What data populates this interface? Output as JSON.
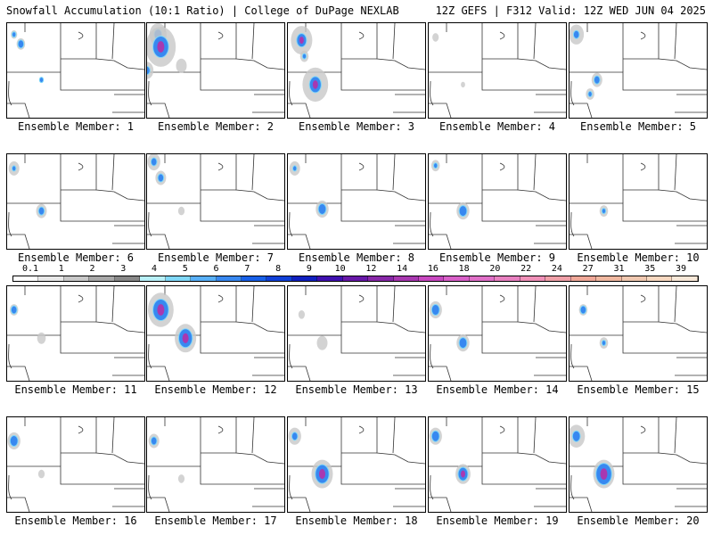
{
  "header": {
    "left": "Snowfall Accumulation (10:1 Ratio) | College of DuPage NEXLAB",
    "right": "12Z GEFS | F312 Valid: 12Z WED JUN 04 2025"
  },
  "panels": [
    {
      "label": "Ensemble Member: 1",
      "snow": [
        [
          0.05,
          0.12,
          3,
          2
        ],
        [
          0.1,
          0.22,
          4,
          3
        ],
        [
          0.25,
          0.6,
          2,
          2
        ]
      ]
    },
    {
      "label": "Ensemble Member: 2",
      "snow": [
        [
          0.08,
          0.12,
          8,
          4
        ],
        [
          0.1,
          0.25,
          14,
          8
        ],
        [
          0.0,
          0.5,
          6,
          3
        ],
        [
          0.25,
          0.45,
          5,
          1
        ]
      ]
    },
    {
      "label": "Ensemble Member: 3",
      "snow": [
        [
          0.1,
          0.18,
          10,
          5
        ],
        [
          0.2,
          0.65,
          12,
          6
        ],
        [
          0.12,
          0.35,
          4,
          2
        ]
      ]
    },
    {
      "label": "Ensemble Member: 4",
      "snow": [
        [
          0.25,
          0.65,
          2,
          1
        ],
        [
          0.05,
          0.15,
          3,
          1
        ]
      ]
    },
    {
      "label": "Ensemble Member: 5",
      "snow": [
        [
          0.05,
          0.12,
          7,
          3
        ],
        [
          0.2,
          0.6,
          5,
          3
        ],
        [
          0.15,
          0.75,
          4,
          2
        ]
      ]
    },
    {
      "label": "Ensemble Member: 6",
      "snow": [
        [
          0.05,
          0.15,
          5,
          2
        ],
        [
          0.25,
          0.6,
          5,
          3
        ]
      ]
    },
    {
      "label": "Ensemble Member: 7",
      "snow": [
        [
          0.05,
          0.08,
          6,
          3
        ],
        [
          0.1,
          0.25,
          5,
          3
        ],
        [
          0.25,
          0.6,
          3,
          1
        ]
      ]
    },
    {
      "label": "Ensemble Member: 8",
      "snow": [
        [
          0.05,
          0.15,
          5,
          2
        ],
        [
          0.25,
          0.58,
          6,
          4
        ]
      ]
    },
    {
      "label": "Ensemble Member: 9",
      "snow": [
        [
          0.05,
          0.12,
          4,
          2
        ],
        [
          0.25,
          0.6,
          6,
          4
        ]
      ]
    },
    {
      "label": "Ensemble Member: 10",
      "snow": [
        [
          0.25,
          0.6,
          4,
          2
        ]
      ]
    },
    {
      "label": "Ensemble Member: 11",
      "snow": [
        [
          0.05,
          0.25,
          4,
          3
        ],
        [
          0.25,
          0.55,
          4,
          1
        ]
      ]
    },
    {
      "label": "Ensemble Member: 12",
      "snow": [
        [
          0.1,
          0.25,
          12,
          8
        ],
        [
          0.28,
          0.55,
          10,
          7
        ]
      ]
    },
    {
      "label": "Ensemble Member: 13",
      "snow": [
        [
          0.1,
          0.3,
          3,
          1
        ],
        [
          0.25,
          0.6,
          5,
          1
        ]
      ]
    },
    {
      "label": "Ensemble Member: 14",
      "snow": [
        [
          0.05,
          0.25,
          6,
          4
        ],
        [
          0.25,
          0.6,
          6,
          4
        ]
      ]
    },
    {
      "label": "Ensemble Member: 15",
      "snow": [
        [
          0.1,
          0.25,
          4,
          3
        ],
        [
          0.25,
          0.6,
          4,
          2
        ]
      ]
    },
    {
      "label": "Ensemble Member: 16",
      "snow": [
        [
          0.05,
          0.25,
          6,
          4
        ],
        [
          0.25,
          0.6,
          3,
          1
        ]
      ]
    },
    {
      "label": "Ensemble Member: 17",
      "snow": [
        [
          0.05,
          0.25,
          5,
          3
        ],
        [
          0.25,
          0.65,
          3,
          1
        ]
      ]
    },
    {
      "label": "Ensemble Member: 18",
      "snow": [
        [
          0.05,
          0.2,
          6,
          3
        ],
        [
          0.25,
          0.6,
          10,
          7
        ]
      ]
    },
    {
      "label": "Ensemble Member: 19",
      "snow": [
        [
          0.05,
          0.2,
          6,
          4
        ],
        [
          0.25,
          0.6,
          7,
          5
        ]
      ]
    },
    {
      "label": "Ensemble Member: 20",
      "snow": [
        [
          0.05,
          0.2,
          8,
          4
        ],
        [
          0.25,
          0.6,
          10,
          8
        ]
      ]
    }
  ],
  "colorbar": {
    "ticks": [
      "0.1",
      "1",
      "2",
      "3",
      "4",
      "5",
      "6",
      "7",
      "8",
      "9",
      "10",
      "12",
      "14",
      "16",
      "18",
      "20",
      "22",
      "24",
      "27",
      "31",
      "35",
      "39"
    ],
    "colors": [
      "#ffffff",
      "#e8e8e8",
      "#c8c8c8",
      "#a8a8a8",
      "#888888",
      "#b8f0f8",
      "#80d8f8",
      "#58b0f8",
      "#3888f0",
      "#1860e8",
      "#1040d8",
      "#1020c0",
      "#4010b0",
      "#6818a8",
      "#8828a8",
      "#a838b0",
      "#c848c0",
      "#d860c8",
      "#e070c8",
      "#e880c0",
      "#f090b8",
      "#f0a0a8",
      "#f0a898",
      "#f0b8a0",
      "#f0c8b0",
      "#f8d8c0",
      "#f8e8d8"
    ]
  }
}
